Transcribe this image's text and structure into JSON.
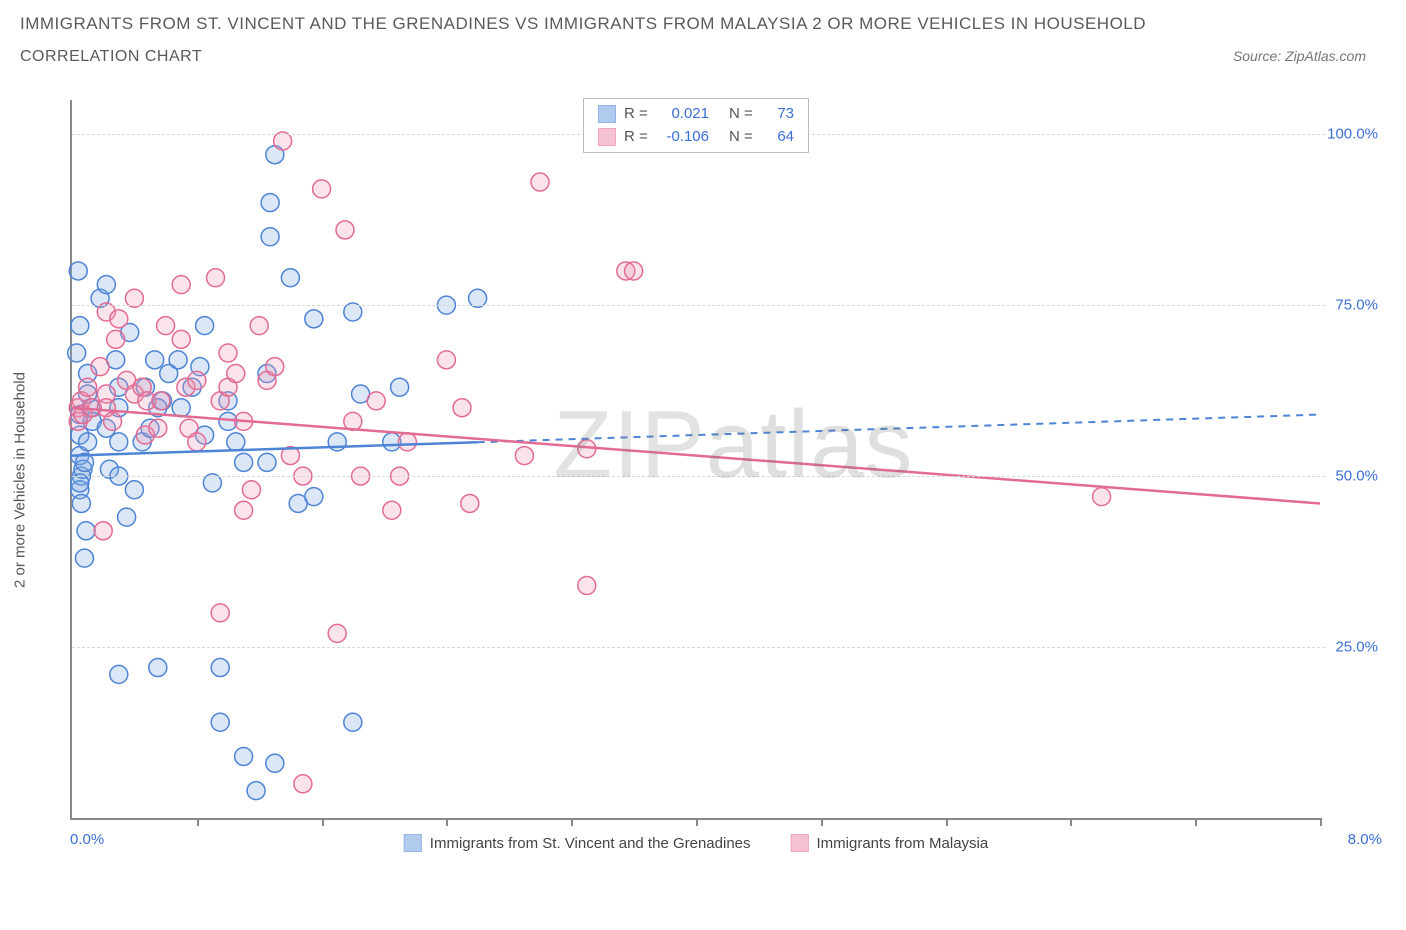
{
  "header": {
    "title": "IMMIGRANTS FROM ST. VINCENT AND THE GRENADINES VS IMMIGRANTS FROM MALAYSIA 2 OR MORE VEHICLES IN HOUSEHOLD",
    "subtitle": "CORRELATION CHART",
    "source": "Source: ZipAtlas.com"
  },
  "chart": {
    "type": "scatter",
    "y_label": "2 or more Vehicles in Household",
    "xlim": [
      0,
      8
    ],
    "ylim": [
      0,
      105
    ],
    "x_min_label": "0.0%",
    "x_max_label": "8.0%",
    "x_ticks_pct": [
      10,
      20,
      30,
      40,
      50,
      60,
      70,
      80,
      90,
      100
    ],
    "y_ticks": [
      {
        "v": 25,
        "label": "25.0%"
      },
      {
        "v": 50,
        "label": "50.0%"
      },
      {
        "v": 75,
        "label": "75.0%"
      },
      {
        "v": 100,
        "label": "100.0%"
      }
    ],
    "background_color": "#ffffff",
    "grid_color": "#d8d8d8",
    "axis_color": "#888888",
    "marker_radius": 9,
    "marker_stroke_width": 1.5,
    "marker_fill_opacity": 0.28,
    "watermark_a": "ZIP",
    "watermark_b": "atlas"
  },
  "series": [
    {
      "id": "svg",
      "name": "Immigrants from St. Vincent and the Grenadines",
      "color_stroke": "#4d84d6",
      "color_fill": "#7da9e3",
      "R": "0.021",
      "N": "73",
      "trend": {
        "y_at_xmin": 53,
        "y_at_xmax": 59
      },
      "trend_solid_to_x": 2.6,
      "points": [
        [
          0.05,
          59
        ],
        [
          0.05,
          56
        ],
        [
          0.05,
          53
        ],
        [
          0.06,
          50
        ],
        [
          0.05,
          48
        ],
        [
          0.05,
          49
        ],
        [
          0.07,
          51
        ],
        [
          0.03,
          68
        ],
        [
          0.05,
          72
        ],
        [
          0.04,
          80
        ],
        [
          0.1,
          65
        ],
        [
          0.12,
          60
        ],
        [
          0.1,
          62
        ],
        [
          0.13,
          58
        ],
        [
          0.1,
          55
        ],
        [
          0.08,
          52
        ],
        [
          0.06,
          46
        ],
        [
          0.09,
          42
        ],
        [
          0.08,
          38
        ],
        [
          0.18,
          76
        ],
        [
          0.22,
          78
        ],
        [
          0.24,
          51
        ],
        [
          0.22,
          57
        ],
        [
          0.3,
          63
        ],
        [
          0.28,
          67
        ],
        [
          0.37,
          71
        ],
        [
          0.3,
          60
        ],
        [
          0.3,
          55
        ],
        [
          0.3,
          50
        ],
        [
          0.35,
          44
        ],
        [
          0.4,
          48
        ],
        [
          0.45,
          55
        ],
        [
          0.47,
          63
        ],
        [
          0.5,
          57
        ],
        [
          0.53,
          67
        ],
        [
          0.58,
          61
        ],
        [
          0.55,
          60
        ],
        [
          0.62,
          65
        ],
        [
          0.68,
          67
        ],
        [
          0.7,
          60
        ],
        [
          0.77,
          63
        ],
        [
          0.85,
          72
        ],
        [
          0.82,
          66
        ],
        [
          0.85,
          56
        ],
        [
          0.9,
          49
        ],
        [
          1.0,
          61
        ],
        [
          1.0,
          58
        ],
        [
          1.05,
          55
        ],
        [
          1.1,
          52
        ],
        [
          1.25,
          65
        ],
        [
          1.25,
          52
        ],
        [
          1.27,
          85
        ],
        [
          1.27,
          90
        ],
        [
          1.3,
          97
        ],
        [
          1.4,
          79
        ],
        [
          1.45,
          46
        ],
        [
          1.55,
          47
        ],
        [
          1.55,
          73
        ],
        [
          1.7,
          55
        ],
        [
          1.8,
          74
        ],
        [
          1.85,
          62
        ],
        [
          2.05,
          55
        ],
        [
          2.1,
          63
        ],
        [
          2.4,
          75
        ],
        [
          2.6,
          76
        ],
        [
          0.3,
          21
        ],
        [
          0.55,
          22
        ],
        [
          0.95,
          22
        ],
        [
          0.95,
          14
        ],
        [
          1.1,
          9
        ],
        [
          1.3,
          8
        ],
        [
          1.18,
          4
        ],
        [
          1.8,
          14
        ]
      ]
    },
    {
      "id": "mys",
      "name": "Immigrants from Malaysia",
      "color_stroke": "#e36b93",
      "color_fill": "#f09bb8",
      "R": "-0.106",
      "N": "64",
      "trend": {
        "y_at_xmin": 60,
        "y_at_xmax": 46
      },
      "trend_solid_to_x": 8.0,
      "points": [
        [
          0.04,
          60
        ],
        [
          0.04,
          58
        ],
        [
          0.06,
          61
        ],
        [
          0.07,
          59
        ],
        [
          0.13,
          60
        ],
        [
          0.1,
          63
        ],
        [
          0.18,
          66
        ],
        [
          0.22,
          62
        ],
        [
          0.22,
          60
        ],
        [
          0.26,
          58
        ],
        [
          0.22,
          74
        ],
        [
          0.28,
          70
        ],
        [
          0.3,
          73
        ],
        [
          0.4,
          76
        ],
        [
          0.35,
          64
        ],
        [
          0.4,
          62
        ],
        [
          0.45,
          63
        ],
        [
          0.48,
          61
        ],
        [
          0.47,
          56
        ],
        [
          0.55,
          57
        ],
        [
          0.57,
          61
        ],
        [
          0.6,
          72
        ],
        [
          0.7,
          78
        ],
        [
          0.7,
          70
        ],
        [
          0.73,
          63
        ],
        [
          0.75,
          57
        ],
        [
          0.8,
          55
        ],
        [
          0.8,
          64
        ],
        [
          0.92,
          79
        ],
        [
          0.95,
          61
        ],
        [
          1.0,
          68
        ],
        [
          1.0,
          63
        ],
        [
          1.05,
          65
        ],
        [
          1.1,
          58
        ],
        [
          1.1,
          45
        ],
        [
          1.15,
          48
        ],
        [
          1.2,
          72
        ],
        [
          1.25,
          64
        ],
        [
          1.3,
          66
        ],
        [
          1.35,
          99
        ],
        [
          1.4,
          53
        ],
        [
          1.48,
          50
        ],
        [
          1.6,
          92
        ],
        [
          1.75,
          86
        ],
        [
          1.8,
          58
        ],
        [
          1.85,
          50
        ],
        [
          1.95,
          61
        ],
        [
          2.05,
          45
        ],
        [
          2.1,
          50
        ],
        [
          2.15,
          55
        ],
        [
          2.4,
          67
        ],
        [
          2.5,
          60
        ],
        [
          2.55,
          46
        ],
        [
          2.9,
          53
        ],
        [
          3.0,
          93
        ],
        [
          3.3,
          34
        ],
        [
          3.3,
          54
        ],
        [
          3.55,
          80
        ],
        [
          3.6,
          80
        ],
        [
          6.6,
          47
        ],
        [
          0.2,
          42
        ],
        [
          0.95,
          30
        ],
        [
          1.7,
          27
        ],
        [
          1.48,
          5
        ]
      ]
    }
  ]
}
